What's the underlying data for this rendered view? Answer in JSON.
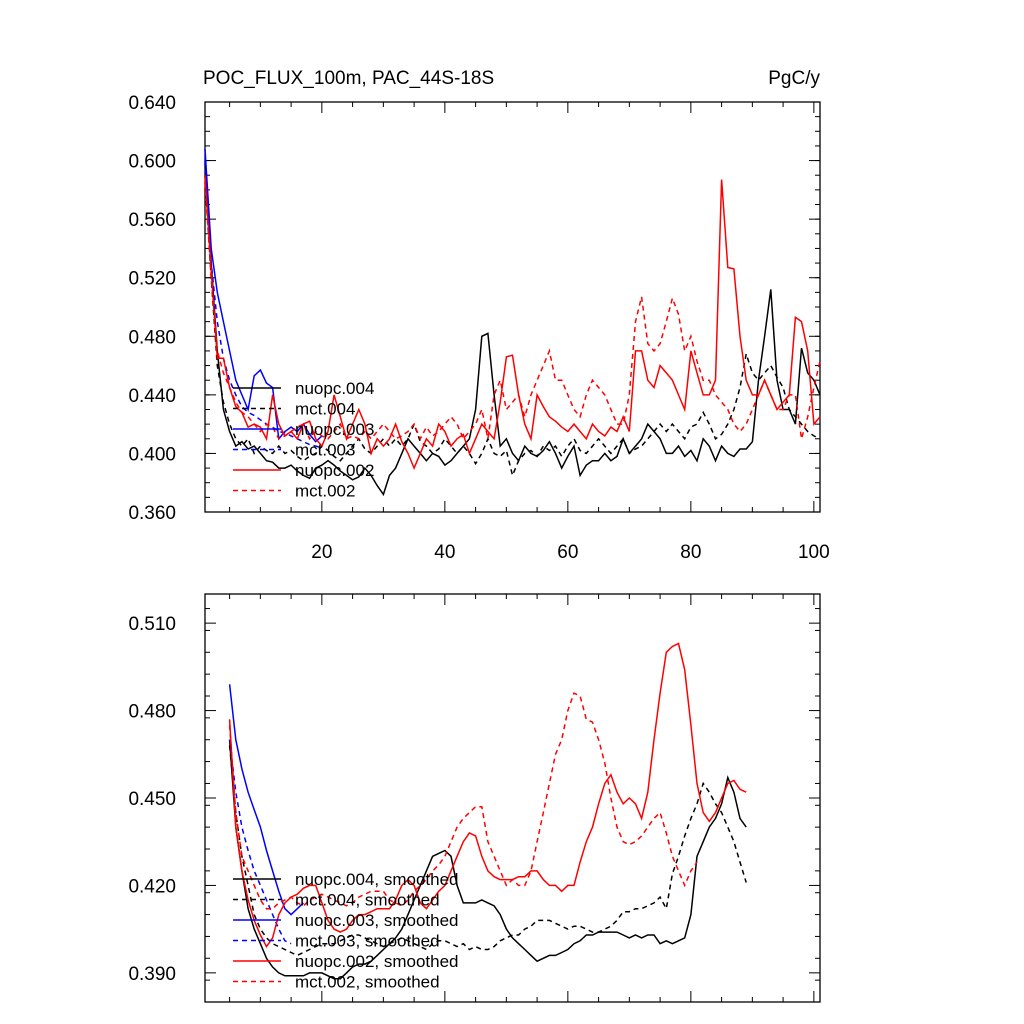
{
  "chart_data": [
    {
      "type": "line",
      "title": "POC_FLUX_100m, PAC_44S-18S",
      "units": "PgC/y",
      "xlim": [
        1,
        101
      ],
      "ylim": [
        0.36,
        0.64
      ],
      "xticks": [
        20,
        40,
        60,
        80,
        100
      ],
      "xtick_labels": [
        "20",
        "40",
        "60",
        "80",
        "100"
      ],
      "yticks": [
        0.36,
        0.4,
        0.44,
        0.48,
        0.52,
        0.56,
        0.6,
        0.64
      ],
      "ytick_labels": [
        "0.360",
        "0.400",
        "0.440",
        "0.480",
        "0.520",
        "0.560",
        "0.600",
        "0.640"
      ],
      "legend": [
        "nuopc.004",
        "mct.004",
        "nuopc.003",
        "mct.003",
        "nuopc.002",
        "mct.002"
      ],
      "series": [
        {
          "name": "nuopc.004",
          "color": "#000000",
          "dash": "solid",
          "x_start": 1,
          "values": [
            0.598,
            0.53,
            0.47,
            0.43,
            0.415,
            0.405,
            0.408,
            0.403,
            0.405,
            0.4,
            0.395,
            0.394,
            0.39,
            0.39,
            0.392,
            0.388,
            0.385,
            0.383,
            0.39,
            0.392,
            0.395,
            0.392,
            0.388,
            0.385,
            0.382,
            0.384,
            0.39,
            0.385,
            0.378,
            0.372,
            0.385,
            0.39,
            0.4,
            0.41,
            0.405,
            0.4,
            0.395,
            0.4,
            0.398,
            0.392,
            0.395,
            0.4,
            0.405,
            0.41,
            0.43,
            0.48,
            0.482,
            0.44,
            0.405,
            0.41,
            0.4,
            0.395,
            0.405,
            0.4,
            0.398,
            0.402,
            0.408,
            0.4,
            0.39,
            0.398,
            0.405,
            0.385,
            0.392,
            0.395,
            0.395,
            0.4,
            0.395,
            0.398,
            0.41,
            0.4,
            0.405,
            0.41,
            0.42,
            0.415,
            0.41,
            0.4,
            0.4,
            0.405,
            0.398,
            0.402,
            0.395,
            0.41,
            0.405,
            0.395,
            0.405,
            0.4,
            0.398,
            0.403,
            0.403,
            0.408,
            0.45,
            0.48,
            0.512,
            0.45,
            0.43,
            0.43,
            0.42,
            0.472,
            0.455,
            0.45,
            0.44
          ]
        },
        {
          "name": "mct.004",
          "color": "#000000",
          "dash": "dashed",
          "x_start": 1,
          "values": [
            0.59,
            0.52,
            0.46,
            0.435,
            0.42,
            0.41,
            0.405,
            0.41,
            0.4,
            0.405,
            0.402,
            0.4,
            0.405,
            0.4,
            0.402,
            0.398,
            0.395,
            0.398,
            0.4,
            0.405,
            0.402,
            0.398,
            0.395,
            0.4,
            0.405,
            0.41,
            0.403,
            0.4,
            0.405,
            0.41,
            0.405,
            0.41,
            0.405,
            0.41,
            0.42,
            0.408,
            0.405,
            0.4,
            0.403,
            0.41,
            0.405,
            0.4,
            0.405,
            0.4,
            0.393,
            0.4,
            0.41,
            0.4,
            0.398,
            0.402,
            0.385,
            0.395,
            0.4,
            0.402,
            0.398,
            0.405,
            0.402,
            0.405,
            0.398,
            0.405,
            0.41,
            0.402,
            0.4,
            0.405,
            0.41,
            0.405,
            0.4,
            0.405,
            0.41,
            0.4,
            0.403,
            0.405,
            0.41,
            0.415,
            0.42,
            0.415,
            0.42,
            0.415,
            0.41,
            0.418,
            0.42,
            0.428,
            0.42,
            0.41,
            0.413,
            0.42,
            0.43,
            0.445,
            0.468,
            0.455,
            0.45,
            0.455,
            0.46,
            0.452,
            0.445,
            0.43,
            0.425,
            0.42,
            0.415,
            0.412,
            0.41
          ]
        },
        {
          "name": "nuopc.003",
          "color": "#0000ff",
          "dash": "solid",
          "x_start": 1,
          "values": [
            0.608,
            0.54,
            0.51,
            0.49,
            0.47,
            0.45,
            0.44,
            0.43,
            0.453,
            0.457,
            0.448,
            0.445,
            0.41,
            0.415,
            0.418,
            0.415,
            0.42,
            0.413,
            0.408,
            0.412
          ]
        },
        {
          "name": "mct.003",
          "color": "#0000ff",
          "dash": "dashed",
          "x_start": 1,
          "values": [
            0.6,
            0.53,
            0.49,
            0.465,
            0.45,
            0.44,
            0.432,
            0.428,
            0.426,
            0.423,
            0.42,
            0.418,
            0.415,
            0.414,
            0.412,
            0.41,
            0.408,
            0.406,
            0.405,
            0.404
          ]
        },
        {
          "name": "nuopc.002",
          "color": "#ff0000",
          "dash": "solid",
          "x_start": 1,
          "values": [
            0.59,
            0.525,
            0.465,
            0.465,
            0.445,
            0.432,
            0.428,
            0.418,
            0.42,
            0.418,
            0.41,
            0.44,
            0.42,
            0.412,
            0.415,
            0.41,
            0.42,
            0.422,
            0.41,
            0.405,
            0.415,
            0.44,
            0.425,
            0.41,
            0.42,
            0.43,
            0.42,
            0.4,
            0.41,
            0.405,
            0.41,
            0.42,
            0.408,
            0.4,
            0.39,
            0.4,
            0.41,
            0.405,
            0.42,
            0.415,
            0.405,
            0.41,
            0.413,
            0.4,
            0.41,
            0.42,
            0.415,
            0.41,
            0.435,
            0.466,
            0.467,
            0.44,
            0.42,
            0.41,
            0.44,
            0.432,
            0.425,
            0.422,
            0.418,
            0.415,
            0.42,
            0.415,
            0.41,
            0.42,
            0.415,
            0.412,
            0.418,
            0.415,
            0.425,
            0.415,
            0.47,
            0.47,
            0.45,
            0.445,
            0.46,
            0.455,
            0.45,
            0.44,
            0.43,
            0.47,
            0.455,
            0.44,
            0.44,
            0.45,
            0.587,
            0.527,
            0.526,
            0.48,
            0.45,
            0.44,
            0.44,
            0.45,
            0.44,
            0.43,
            0.435,
            0.44,
            0.493,
            0.49,
            0.47,
            0.42,
            0.425
          ]
        },
        {
          "name": "mct.002",
          "color": "#ff0000",
          "dash": "dashed",
          "x_start": 1,
          "values": [
            0.585,
            0.52,
            0.47,
            0.455,
            0.445,
            0.435,
            0.428,
            0.425,
            0.42,
            0.415,
            0.42,
            0.418,
            0.41,
            0.412,
            0.415,
            0.418,
            0.42,
            0.41,
            0.415,
            0.412,
            0.41,
            0.415,
            0.42,
            0.41,
            0.412,
            0.41,
            0.415,
            0.41,
            0.415,
            0.42,
            0.415,
            0.41,
            0.412,
            0.415,
            0.42,
            0.41,
            0.418,
            0.412,
            0.415,
            0.42,
            0.425,
            0.42,
            0.41,
            0.415,
            0.42,
            0.43,
            0.41,
            0.44,
            0.45,
            0.43,
            0.435,
            0.44,
            0.425,
            0.44,
            0.45,
            0.46,
            0.47,
            0.45,
            0.45,
            0.44,
            0.43,
            0.425,
            0.44,
            0.45,
            0.445,
            0.44,
            0.43,
            0.42,
            0.42,
            0.44,
            0.49,
            0.507,
            0.475,
            0.47,
            0.475,
            0.49,
            0.506,
            0.495,
            0.47,
            0.48,
            0.463,
            0.45,
            0.45,
            0.44,
            0.435,
            0.43,
            0.42,
            0.415,
            0.42,
            0.43,
            0.44,
            0.45,
            0.44,
            0.43,
            0.43,
            0.44,
            0.44,
            0.41,
            0.425,
            0.445,
            0.463
          ]
        }
      ]
    },
    {
      "type": "line",
      "xlim": [
        1,
        101
      ],
      "ylim": [
        0.38,
        0.52
      ],
      "xticks": [
        20,
        40,
        60,
        80,
        100
      ],
      "yticks": [
        0.39,
        0.42,
        0.45,
        0.48,
        0.51
      ],
      "ytick_labels": [
        "0.390",
        "0.420",
        "0.450",
        "0.480",
        "0.510"
      ],
      "legend": [
        "nuopc.004, smoothed",
        "mct.004, smoothed",
        "nuopc.003, smoothed",
        "mct.003, smoothed",
        "nuopc.002, smoothed",
        "mct.002, smoothed"
      ],
      "series": [
        {
          "name": "nuopc.004, smoothed",
          "color": "#000000",
          "dash": "solid",
          "x_start": 5,
          "values": [
            0.47,
            0.44,
            0.425,
            0.412,
            0.405,
            0.4,
            0.395,
            0.392,
            0.39,
            0.389,
            0.389,
            0.389,
            0.389,
            0.39,
            0.39,
            0.39,
            0.389,
            0.388,
            0.388,
            0.39,
            0.392,
            0.393,
            0.393,
            0.394,
            0.396,
            0.398,
            0.4,
            0.402,
            0.405,
            0.41,
            0.415,
            0.42,
            0.425,
            0.43,
            0.431,
            0.432,
            0.43,
            0.42,
            0.414,
            0.414,
            0.414,
            0.415,
            0.414,
            0.413,
            0.41,
            0.405,
            0.402,
            0.4,
            0.398,
            0.396,
            0.394,
            0.395,
            0.396,
            0.396,
            0.397,
            0.398,
            0.4,
            0.401,
            0.403,
            0.403,
            0.404,
            0.404,
            0.404,
            0.404,
            0.403,
            0.402,
            0.403,
            0.402,
            0.403,
            0.403,
            0.4,
            0.401,
            0.4,
            0.401,
            0.402,
            0.41,
            0.43,
            0.435,
            0.44,
            0.443,
            0.448,
            0.457,
            0.452,
            0.443,
            0.44
          ]
        },
        {
          "name": "mct.004, smoothed",
          "color": "#000000",
          "dash": "dashed",
          "x_start": 5,
          "values": [
            0.468,
            0.445,
            0.43,
            0.42,
            0.41,
            0.405,
            0.402,
            0.4,
            0.399,
            0.398,
            0.397,
            0.396,
            0.397,
            0.398,
            0.399,
            0.4,
            0.4,
            0.4,
            0.401,
            0.402,
            0.403,
            0.403,
            0.402,
            0.401,
            0.4,
            0.399,
            0.4,
            0.401,
            0.402,
            0.401,
            0.4,
            0.399,
            0.398,
            0.4,
            0.401,
            0.401,
            0.4,
            0.399,
            0.4,
            0.398,
            0.399,
            0.398,
            0.398,
            0.399,
            0.401,
            0.402,
            0.403,
            0.403,
            0.405,
            0.406,
            0.408,
            0.408,
            0.408,
            0.407,
            0.406,
            0.405,
            0.406,
            0.406,
            0.405,
            0.404,
            0.404,
            0.405,
            0.406,
            0.408,
            0.411,
            0.411,
            0.412,
            0.412,
            0.413,
            0.414,
            0.416,
            0.412,
            0.424,
            0.43,
            0.437,
            0.443,
            0.448,
            0.455,
            0.452,
            0.448,
            0.445,
            0.44,
            0.435,
            0.428,
            0.421
          ]
        },
        {
          "name": "nuopc.003, smoothed",
          "color": "#0000ff",
          "dash": "solid",
          "x_start": 5,
          "values": [
            0.489,
            0.47,
            0.46,
            0.452,
            0.446,
            0.44,
            0.432,
            0.425,
            0.418,
            0.412,
            0.41,
            0.412,
            0.414
          ]
        },
        {
          "name": "mct.003, smoothed",
          "color": "#0000ff",
          "dash": "dashed",
          "x_start": 5,
          "values": [
            0.47,
            0.452,
            0.44,
            0.432,
            0.425,
            0.42,
            0.415,
            0.41,
            0.405,
            0.401,
            0.4
          ]
        },
        {
          "name": "nuopc.002, smoothed",
          "color": "#ff0000",
          "dash": "solid",
          "x_start": 5,
          "values": [
            0.477,
            0.44,
            0.425,
            0.415,
            0.408,
            0.403,
            0.399,
            0.402,
            0.41,
            0.414,
            0.416,
            0.417,
            0.419,
            0.42,
            0.42,
            0.414,
            0.408,
            0.405,
            0.404,
            0.405,
            0.408,
            0.41,
            0.41,
            0.411,
            0.412,
            0.412,
            0.412,
            0.415,
            0.42,
            0.422,
            0.42,
            0.414,
            0.412,
            0.415,
            0.418,
            0.42,
            0.425,
            0.43,
            0.435,
            0.438,
            0.437,
            0.43,
            0.425,
            0.423,
            0.422,
            0.422,
            0.422,
            0.423,
            0.423,
            0.425,
            0.425,
            0.422,
            0.42,
            0.42,
            0.418,
            0.42,
            0.42,
            0.428,
            0.435,
            0.44,
            0.448,
            0.455,
            0.458,
            0.452,
            0.448,
            0.45,
            0.448,
            0.443,
            0.452,
            0.47,
            0.486,
            0.5,
            0.502,
            0.503,
            0.494,
            0.475,
            0.455,
            0.445,
            0.442,
            0.445,
            0.45,
            0.455,
            0.456,
            0.453,
            0.452
          ]
        },
        {
          "name": "mct.002, smoothed",
          "color": "#ff0000",
          "dash": "dashed",
          "x_start": 5,
          "values": [
            0.475,
            0.445,
            0.43,
            0.425,
            0.42,
            0.415,
            0.412,
            0.412,
            0.414,
            0.415,
            0.416,
            0.414,
            0.413,
            0.415,
            0.416,
            0.417,
            0.416,
            0.415,
            0.414,
            0.413,
            0.414,
            0.416,
            0.417,
            0.418,
            0.418,
            0.418,
            0.415,
            0.414,
            0.413,
            0.415,
            0.418,
            0.42,
            0.422,
            0.425,
            0.427,
            0.43,
            0.435,
            0.44,
            0.443,
            0.445,
            0.447,
            0.447,
            0.435,
            0.43,
            0.425,
            0.42,
            0.422,
            0.42,
            0.42,
            0.425,
            0.435,
            0.445,
            0.455,
            0.465,
            0.47,
            0.48,
            0.486,
            0.485,
            0.477,
            0.476,
            0.47,
            0.462,
            0.45,
            0.44,
            0.435,
            0.434,
            0.435,
            0.437,
            0.44,
            0.443,
            0.445,
            0.438,
            0.43,
            0.425,
            0.42,
            0.425,
            0.428
          ]
        }
      ]
    }
  ]
}
